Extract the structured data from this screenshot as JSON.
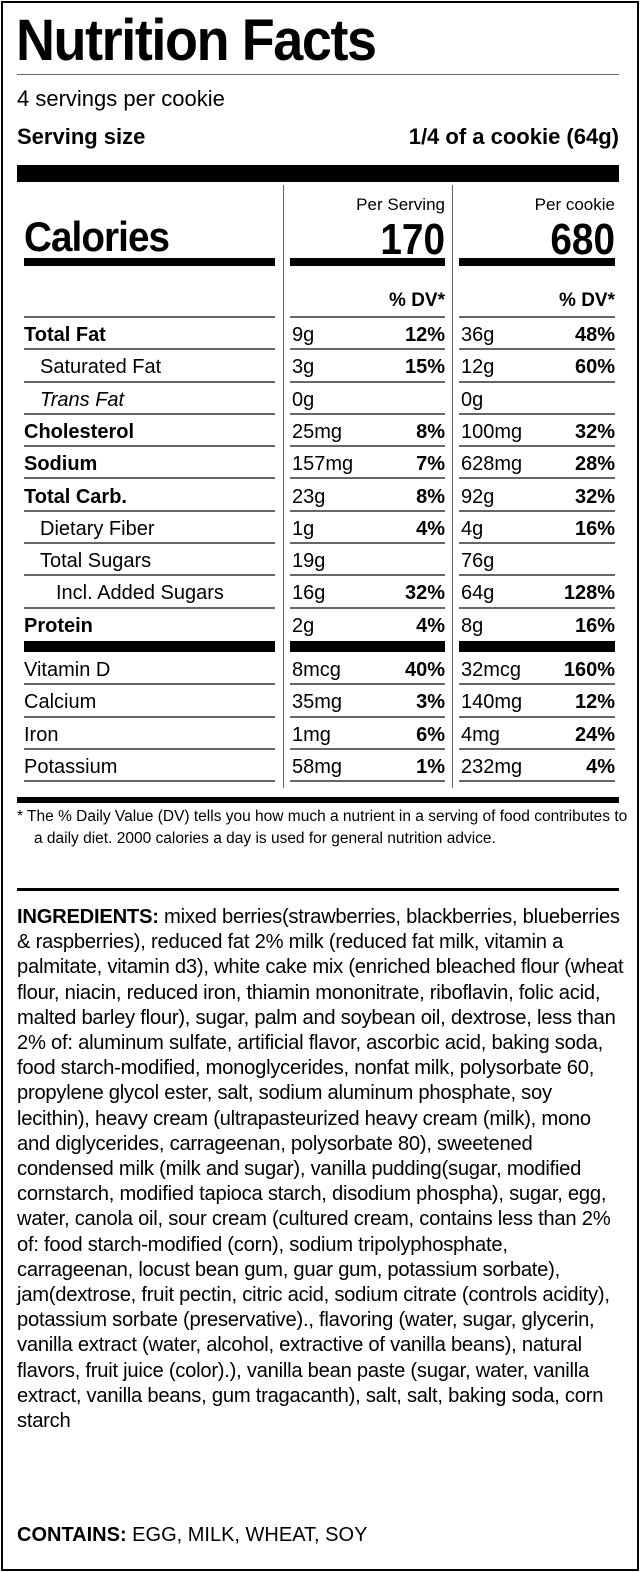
{
  "title": "Nutrition Facts",
  "servings_per_container": "4 servings per cookie",
  "serving_size": {
    "label": "Serving size",
    "value": "1/4 of a cookie (64g)"
  },
  "calories": {
    "label": "Calories",
    "per_serving_header": "Per Serving",
    "per_serving": "170",
    "per_container_header": "Per cookie",
    "per_container": "680"
  },
  "dv_header": "% DV*",
  "nutrients": [
    {
      "name": "Total Fat",
      "style": "bold",
      "indent": 0,
      "serving_amount": "9g",
      "serving_dv": "12%",
      "container_amount": "36g",
      "container_dv": "48%"
    },
    {
      "name": "Saturated Fat",
      "style": "normal",
      "indent": 1,
      "serving_amount": "3g",
      "serving_dv": "15%",
      "container_amount": "12g",
      "container_dv": "60%"
    },
    {
      "name": "Trans Fat",
      "style": "italic",
      "indent": 1,
      "serving_amount": "0g",
      "serving_dv": "",
      "container_amount": "0g",
      "container_dv": ""
    },
    {
      "name": "Cholesterol",
      "style": "bold",
      "indent": 0,
      "serving_amount": "25mg",
      "serving_dv": "8%",
      "container_amount": "100mg",
      "container_dv": "32%"
    },
    {
      "name": "Sodium",
      "style": "bold",
      "indent": 0,
      "serving_amount": "157mg",
      "serving_dv": "7%",
      "container_amount": "628mg",
      "container_dv": "28%"
    },
    {
      "name": "Total Carb.",
      "style": "bold",
      "indent": 0,
      "serving_amount": "23g",
      "serving_dv": "8%",
      "container_amount": "92g",
      "container_dv": "32%"
    },
    {
      "name": "Dietary Fiber",
      "style": "normal",
      "indent": 1,
      "serving_amount": "1g",
      "serving_dv": "4%",
      "container_amount": "4g",
      "container_dv": "16%"
    },
    {
      "name": "Total Sugars",
      "style": "normal",
      "indent": 1,
      "serving_amount": "19g",
      "serving_dv": "",
      "container_amount": "76g",
      "container_dv": ""
    },
    {
      "name": "Incl. Added Sugars",
      "style": "normal",
      "indent": 2,
      "serving_amount": "16g",
      "serving_dv": "32%",
      "container_amount": "64g",
      "container_dv": "128%"
    },
    {
      "name": "Protein",
      "style": "bold",
      "indent": 0,
      "serving_amount": "2g",
      "serving_dv": "4%",
      "container_amount": "8g",
      "container_dv": "16%"
    }
  ],
  "vitamins": [
    {
      "name": "Vitamin D",
      "serving_amount": "8mcg",
      "serving_dv": "40%",
      "container_amount": "32mcg",
      "container_dv": "160%"
    },
    {
      "name": "Calcium",
      "serving_amount": "35mg",
      "serving_dv": "3%",
      "container_amount": "140mg",
      "container_dv": "12%"
    },
    {
      "name": "Iron",
      "serving_amount": "1mg",
      "serving_dv": "6%",
      "container_amount": "4mg",
      "container_dv": "24%"
    },
    {
      "name": "Potassium",
      "serving_amount": "58mg",
      "serving_dv": "1%",
      "container_amount": "232mg",
      "container_dv": "4%"
    }
  ],
  "footnote": "* The % Daily Value (DV) tells you how much a nutrient in a serving of food contributes to a daily diet. 2000 calories a day is used for general nutrition advice.",
  "ingredients": {
    "label": "INGREDIENTS:",
    "text": " mixed berries(strawberries, blackberries, blueberries & raspberries), reduced fat 2% milk (reduced fat milk, vitamin a palmitate, vitamin d3), white cake mix (enriched bleached flour (wheat flour, niacin, reduced iron, thiamin mononitrate, riboflavin, folic acid, malted barley flour), sugar, palm and soybean oil, dextrose, less than 2% of: aluminum sulfate, artificial flavor, ascorbic acid, baking soda, food starch-modified, monoglycerides, nonfat milk, polysorbate 60, propylene glycol ester, salt, sodium aluminum phosphate, soy lecithin), heavy cream (ultrapasteurized heavy cream (milk), mono and diglycerides, carrageenan, polysorbate 80), sweetened condensed milk (milk and sugar), vanilla pudding(sugar, modified cornstarch, modified tapioca starch, disodium phospha), sugar, egg, water, canola oil, sour cream (cultured cream, contains less than 2% of: food starch-modified (corn), sodium tripolyphosphate, carrageenan, locust bean gum, guar gum, potassium sorbate), jam(dextrose, fruit pectin, citric acid, sodium citrate (controls acidity), potassium sorbate (preservative)., flavoring (water, sugar, glycerin, vanilla extract (water, alcohol, extractive of vanilla beans), natural flavors, fruit juice (color).), vanilla bean paste (sugar, water, vanilla extract, vanilla beans, gum tragacanth), salt, salt, baking soda, corn starch"
  },
  "contains": {
    "label": "CONTAINS:",
    "text": " EGG, MILK, WHEAT, SOY"
  }
}
